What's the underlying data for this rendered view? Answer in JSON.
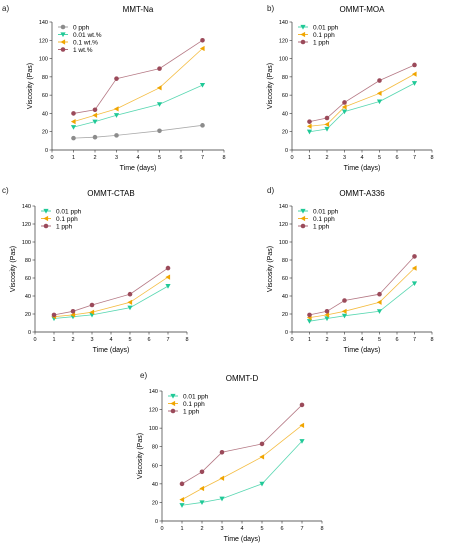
{
  "chart_data": [
    {
      "type": "line",
      "panel_letter": "a)",
      "title": "MMT-Na",
      "xlabel": "Time (days)",
      "ylabel": "Viscosity (Pas)",
      "xlim": [
        0,
        8
      ],
      "ylim": [
        0,
        140
      ],
      "xticks": [
        0,
        1,
        2,
        3,
        4,
        5,
        6,
        7,
        8
      ],
      "yticks": [
        0,
        20,
        40,
        60,
        80,
        100,
        120,
        140
      ],
      "grid": false,
      "legend": "top-left",
      "x": [
        1,
        2,
        3,
        5,
        7
      ],
      "series": [
        {
          "name": "0 pph",
          "values": [
            13,
            14,
            16,
            21,
            27
          ],
          "color": "#8c8c8c",
          "marker": "circle"
        },
        {
          "name": "0.01 wt.%",
          "values": [
            25,
            31,
            38,
            50,
            71
          ],
          "color": "#20c997",
          "marker": "triangle-down"
        },
        {
          "name": "0.1 wt.%",
          "values": [
            31,
            38,
            45,
            68,
            111
          ],
          "color": "#f0a500",
          "marker": "triangle-left"
        },
        {
          "name": "1 wt.%",
          "values": [
            40,
            44,
            78,
            89,
            120
          ],
          "color": "#9b4a5a",
          "marker": "circle"
        }
      ]
    },
    {
      "type": "line",
      "panel_letter": "b)",
      "title": "OMMT-MOA",
      "xlabel": "Time (days)",
      "ylabel": "Viscosity (Pas)",
      "xlim": [
        0,
        8
      ],
      "ylim": [
        0,
        140
      ],
      "xticks": [
        0,
        1,
        2,
        3,
        4,
        5,
        6,
        7,
        8
      ],
      "yticks": [
        0,
        20,
        40,
        60,
        80,
        100,
        120,
        140
      ],
      "grid": false,
      "legend": "top-left",
      "x": [
        1,
        2,
        3,
        5,
        7
      ],
      "series": [
        {
          "name": "0.01 pph",
          "values": [
            20,
            23,
            42,
            53,
            73
          ],
          "color": "#20c997",
          "marker": "triangle-down"
        },
        {
          "name": "0.1 pph",
          "values": [
            26,
            28,
            47,
            62,
            83
          ],
          "color": "#f0a500",
          "marker": "triangle-left"
        },
        {
          "name": "1 pph",
          "values": [
            31,
            35,
            52,
            76,
            93
          ],
          "color": "#9b4a5a",
          "marker": "circle"
        }
      ]
    },
    {
      "type": "line",
      "panel_letter": "c)",
      "title": "OMMT-CTAB",
      "xlabel": "Time (days)",
      "ylabel": "Viscosity (Pas)",
      "xlim": [
        0,
        8
      ],
      "ylim": [
        0,
        140
      ],
      "xticks": [
        0,
        1,
        2,
        3,
        4,
        5,
        6,
        7,
        8
      ],
      "yticks": [
        0,
        20,
        40,
        60,
        80,
        100,
        120,
        140
      ],
      "grid": false,
      "legend": "top-left",
      "x": [
        1,
        2,
        3,
        5,
        7
      ],
      "series": [
        {
          "name": "0.01 pph",
          "values": [
            15,
            17,
            19,
            27,
            51
          ],
          "color": "#20c997",
          "marker": "triangle-down"
        },
        {
          "name": "0.1 pph",
          "values": [
            17,
            19,
            22,
            33,
            61
          ],
          "color": "#f0a500",
          "marker": "triangle-left"
        },
        {
          "name": "1 pph",
          "values": [
            19,
            23,
            30,
            42,
            71
          ],
          "color": "#9b4a5a",
          "marker": "circle"
        }
      ]
    },
    {
      "type": "line",
      "panel_letter": "d)",
      "title": "OMMT-A336",
      "xlabel": "Time (days)",
      "ylabel": "Viscosity (Pas)",
      "xlim": [
        0,
        8
      ],
      "ylim": [
        0,
        140
      ],
      "xticks": [
        0,
        1,
        2,
        3,
        4,
        5,
        6,
        7,
        8
      ],
      "yticks": [
        0,
        20,
        40,
        60,
        80,
        100,
        120,
        140
      ],
      "grid": false,
      "legend": "top-left",
      "x": [
        1,
        2,
        3,
        5,
        7
      ],
      "series": [
        {
          "name": "0.01 pph",
          "values": [
            12,
            15,
            18,
            23,
            54
          ],
          "color": "#20c997",
          "marker": "triangle-down"
        },
        {
          "name": "0.1 pph",
          "values": [
            16,
            19,
            23,
            33,
            71
          ],
          "color": "#f0a500",
          "marker": "triangle-left"
        },
        {
          "name": "1 pph",
          "values": [
            19,
            23,
            35,
            42,
            84
          ],
          "color": "#9b4a5a",
          "marker": "circle"
        }
      ]
    },
    {
      "type": "line",
      "panel_letter": "e)",
      "title": "OMMT-D",
      "xlabel": "Time (days)",
      "ylabel": "Viscosity (Pas)",
      "xlim": [
        0,
        8
      ],
      "ylim": [
        0,
        140
      ],
      "xticks": [
        0,
        1,
        2,
        3,
        4,
        5,
        6,
        7,
        8
      ],
      "yticks": [
        0,
        20,
        40,
        60,
        80,
        100,
        120,
        140
      ],
      "grid": false,
      "legend": "top-left",
      "x": [
        1,
        2,
        3,
        5,
        7
      ],
      "series": [
        {
          "name": "0.01 pph",
          "values": [
            17,
            20,
            24,
            40,
            86
          ],
          "color": "#20c997",
          "marker": "triangle-down"
        },
        {
          "name": "0.1 pph",
          "values": [
            23,
            35,
            46,
            69,
            103
          ],
          "color": "#f0a500",
          "marker": "triangle-left"
        },
        {
          "name": "1 pph",
          "values": [
            40,
            53,
            74,
            83,
            125
          ],
          "color": "#9b4a5a",
          "marker": "circle"
        }
      ]
    }
  ]
}
